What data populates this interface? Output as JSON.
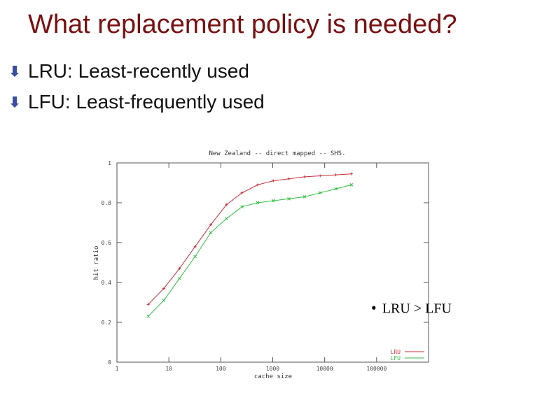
{
  "slide": {
    "title": "What replacement policy is needed?",
    "bullets": [
      "LRU: Least-recently used",
      "LFU: Least-frequently used"
    ],
    "bullet_icon": "arrow-bullet-icon",
    "title_color": "#7a1010",
    "bullet_color": "#3a4fa0"
  },
  "chart_data": {
    "type": "line",
    "title": "New Zealand -- direct mapped -- SHS.",
    "xlabel": "cache size",
    "ylabel": "hit ratio",
    "xscale": "log",
    "xlim": [
      1,
      1000000
    ],
    "ylim": [
      0,
      1
    ],
    "x_ticks": [
      1,
      10,
      100,
      1000,
      10000,
      100000
    ],
    "x_tick_labels": [
      "1",
      "10",
      "100",
      "1000",
      "10000",
      "100000"
    ],
    "y_ticks": [
      0,
      0.2,
      0.4,
      0.6,
      0.8,
      1
    ],
    "y_tick_labels": [
      "0",
      "0.2",
      "0.4",
      "0.6",
      "0.8",
      "1"
    ],
    "legend_position": "bottom-right",
    "series": [
      {
        "name": "LRU",
        "color": "#c8303a",
        "x": [
          4,
          8,
          16,
          32,
          64,
          128,
          256,
          512,
          1024,
          2048,
          4096,
          8192,
          16384,
          32768
        ],
        "y": [
          0.29,
          0.37,
          0.47,
          0.58,
          0.69,
          0.79,
          0.85,
          0.89,
          0.91,
          0.92,
          0.93,
          0.935,
          0.94,
          0.945
        ]
      },
      {
        "name": "LFU",
        "color": "#30c040",
        "x": [
          4,
          8,
          16,
          32,
          64,
          128,
          256,
          512,
          1024,
          2048,
          4096,
          8192,
          16384,
          32768
        ],
        "y": [
          0.23,
          0.31,
          0.42,
          0.53,
          0.65,
          0.72,
          0.78,
          0.8,
          0.81,
          0.82,
          0.83,
          0.85,
          0.87,
          0.89
        ]
      }
    ],
    "annotation": {
      "text": "LRU > LFU",
      "x": 100000,
      "y": 0.35
    }
  }
}
